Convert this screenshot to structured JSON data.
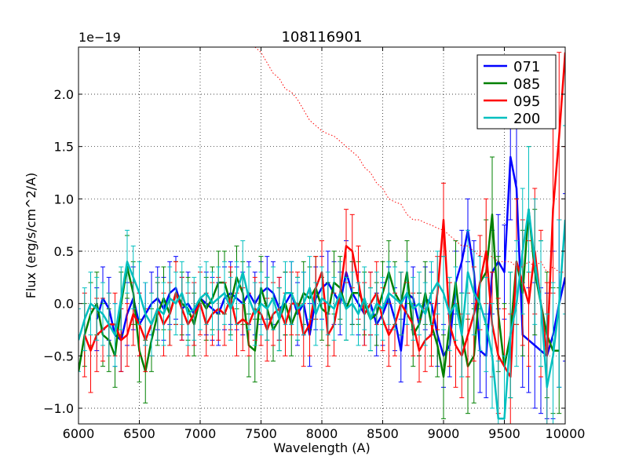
{
  "chart_data": {
    "type": "line",
    "title": "108116901",
    "xlabel": "Wavelength (A)",
    "ylabel": "Flux (erg/s/cm^2/A)",
    "offset_text": "1e−19",
    "xlim": [
      6000,
      10000
    ],
    "ylim": [
      -1.15,
      2.45
    ],
    "xticks": [
      6000,
      6500,
      7000,
      7500,
      8000,
      8500,
      9000,
      9500,
      10000
    ],
    "xtick_labels": [
      "6000",
      "6500",
      "7000",
      "7500",
      "8000",
      "8500",
      "9000",
      "9500",
      "10000"
    ],
    "yticks": [
      -1.0,
      -0.5,
      0.0,
      0.5,
      1.0,
      1.5,
      2.0
    ],
    "ytick_labels": [
      "−1.0",
      "−0.5",
      "0.0",
      "0.5",
      "1.0",
      "1.5",
      "2.0"
    ],
    "grid": true,
    "legend_position": "top-right",
    "series": [
      {
        "name": "071",
        "color": "#0000ff",
        "x": [
          6150,
          6200,
          6250,
          6300,
          6350,
          6400,
          6450,
          6500,
          6550,
          6600,
          6650,
          6700,
          6750,
          6800,
          6850,
          6900,
          6950,
          7000,
          7050,
          7100,
          7150,
          7200,
          7250,
          7300,
          7350,
          7400,
          7450,
          7500,
          7550,
          7600,
          7650,
          7700,
          7750,
          7800,
          7850,
          7900,
          7950,
          8000,
          8050,
          8100,
          8150,
          8200,
          8250,
          8300,
          8350,
          8400,
          8450,
          8500,
          8550,
          8600,
          8650,
          8700,
          8750,
          8800,
          8850,
          8900,
          8950,
          9000,
          9050,
          9100,
          9150,
          9200,
          9250,
          9300,
          9350,
          9400,
          9450,
          9500,
          9550,
          9600,
          9650,
          9700,
          9750,
          9800,
          9850,
          9900,
          9950,
          10000
        ],
        "values": [
          -0.15,
          0.05,
          -0.05,
          -0.3,
          -0.35,
          -0.1,
          0.05,
          -0.2,
          -0.1,
          0.0,
          0.05,
          -0.05,
          0.1,
          0.15,
          -0.05,
          0.0,
          -0.1,
          0.05,
          0.0,
          -0.05,
          -0.1,
          0.05,
          0.1,
          0.05,
          0.0,
          0.1,
          0.0,
          0.1,
          0.15,
          0.1,
          -0.05,
          0.0,
          0.1,
          -0.1,
          0.0,
          -0.3,
          0.05,
          0.15,
          0.2,
          0.1,
          0.0,
          0.3,
          0.1,
          0.0,
          -0.1,
          0.0,
          -0.2,
          -0.1,
          0.05,
          -0.15,
          -0.45,
          0.1,
          0.05,
          -0.2,
          0.05,
          0.0,
          -0.3,
          -0.5,
          -0.4,
          0.2,
          0.4,
          0.7,
          0.3,
          -0.45,
          -0.5,
          0.3,
          0.4,
          0.3,
          1.4,
          1.1,
          -0.3,
          -0.35,
          -0.4,
          -0.45,
          -0.5,
          -0.3,
          0.0,
          0.25
        ],
        "errors": [
          0.3,
          0.3,
          0.3,
          0.3,
          0.3,
          0.3,
          0.3,
          0.3,
          0.3,
          0.3,
          0.3,
          0.3,
          0.3,
          0.3,
          0.3,
          0.3,
          0.3,
          0.3,
          0.3,
          0.3,
          0.3,
          0.3,
          0.3,
          0.3,
          0.3,
          0.3,
          0.3,
          0.3,
          0.3,
          0.3,
          0.3,
          0.3,
          0.3,
          0.3,
          0.3,
          0.3,
          0.3,
          0.3,
          0.3,
          0.3,
          0.3,
          0.3,
          0.3,
          0.3,
          0.3,
          0.3,
          0.3,
          0.3,
          0.3,
          0.3,
          0.3,
          0.3,
          0.3,
          0.3,
          0.3,
          0.3,
          0.3,
          0.3,
          0.3,
          0.3,
          0.3,
          0.3,
          0.3,
          0.4,
          0.4,
          0.4,
          0.45,
          0.45,
          0.6,
          0.6,
          0.5,
          0.5,
          0.6,
          0.6,
          0.6,
          0.8,
          0.8,
          0.8
        ]
      },
      {
        "name": "085",
        "color": "#008000",
        "x": [
          6000,
          6050,
          6100,
          6150,
          6200,
          6250,
          6300,
          6350,
          6400,
          6450,
          6500,
          6550,
          6600,
          6650,
          6700,
          6750,
          6800,
          6850,
          6900,
          6950,
          7000,
          7050,
          7100,
          7150,
          7200,
          7250,
          7300,
          7350,
          7400,
          7450,
          7500,
          7550,
          7600,
          7650,
          7700,
          7750,
          7800,
          7850,
          7900,
          7950,
          8000,
          8050,
          8100,
          8150,
          8200,
          8250,
          8300,
          8350,
          8400,
          8450,
          8500,
          8550,
          8600,
          8650,
          8700,
          8750,
          8800,
          8850,
          8900,
          8950,
          9000,
          9050,
          9100,
          9150,
          9200,
          9250,
          9300,
          9350,
          9400,
          9450,
          9500,
          9550,
          9600,
          9650,
          9700,
          9750,
          9800,
          9850,
          9900,
          9950
        ],
        "values": [
          -0.65,
          -0.3,
          -0.1,
          0.0,
          -0.3,
          -0.35,
          -0.5,
          0.0,
          0.35,
          0.1,
          -0.45,
          -0.65,
          -0.35,
          -0.1,
          0.05,
          -0.1,
          0.1,
          0.0,
          -0.05,
          -0.2,
          0.05,
          -0.05,
          0.05,
          0.2,
          0.2,
          0.0,
          0.25,
          0.1,
          -0.4,
          -0.45,
          0.15,
          -0.05,
          -0.25,
          -0.15,
          0.0,
          -0.2,
          -0.05,
          0.1,
          0.05,
          0.15,
          -0.05,
          -0.1,
          0.2,
          0.15,
          -0.05,
          0.1,
          0.1,
          0.0,
          -0.15,
          -0.1,
          0.1,
          0.3,
          0.1,
          0.0,
          0.3,
          -0.3,
          -0.2,
          0.1,
          -0.2,
          -0.4,
          -0.7,
          -0.2,
          0.2,
          -0.3,
          -0.6,
          -0.5,
          0.2,
          0.3,
          0.85,
          -0.1,
          -0.6,
          -0.3,
          0.4,
          0.1,
          0.9,
          0.3,
          0.0,
          -0.3,
          -0.45,
          -0.45
        ],
        "errors": [
          0.35,
          0.3,
          0.3,
          0.3,
          0.3,
          0.3,
          0.3,
          0.3,
          0.3,
          0.3,
          0.3,
          0.3,
          0.3,
          0.3,
          0.3,
          0.3,
          0.3,
          0.3,
          0.3,
          0.3,
          0.3,
          0.3,
          0.3,
          0.3,
          0.3,
          0.3,
          0.3,
          0.3,
          0.3,
          0.3,
          0.3,
          0.3,
          0.3,
          0.3,
          0.3,
          0.3,
          0.3,
          0.3,
          0.3,
          0.3,
          0.3,
          0.3,
          0.3,
          0.3,
          0.3,
          0.3,
          0.3,
          0.3,
          0.3,
          0.3,
          0.3,
          0.3,
          0.3,
          0.3,
          0.3,
          0.3,
          0.3,
          0.3,
          0.3,
          0.3,
          0.4,
          0.4,
          0.4,
          0.4,
          0.45,
          0.45,
          0.45,
          0.5,
          0.55,
          0.55,
          0.6,
          0.6,
          0.6,
          0.6,
          0.6,
          0.6,
          0.6,
          0.6,
          0.6,
          0.6
        ]
      },
      {
        "name": "095",
        "color": "#ff0000",
        "x": [
          6050,
          6100,
          6150,
          6200,
          6250,
          6300,
          6350,
          6400,
          6450,
          6500,
          6550,
          6600,
          6650,
          6700,
          6750,
          6800,
          6850,
          6900,
          6950,
          7000,
          7050,
          7100,
          7150,
          7200,
          7250,
          7300,
          7350,
          7400,
          7450,
          7500,
          7550,
          7600,
          7650,
          7700,
          7750,
          7800,
          7850,
          7900,
          7950,
          8000,
          8050,
          8100,
          8150,
          8200,
          8250,
          8300,
          8350,
          8400,
          8450,
          8500,
          8550,
          8600,
          8650,
          8700,
          8750,
          8800,
          8850,
          8900,
          8950,
          9000,
          9050,
          9100,
          9150,
          9200,
          9250,
          9300,
          9350,
          9400,
          9450,
          9500,
          9550,
          9600,
          9650,
          9700,
          9750,
          9800,
          9850,
          9900,
          9950,
          10000
        ],
        "values": [
          -0.3,
          -0.45,
          -0.3,
          -0.25,
          -0.2,
          -0.2,
          -0.35,
          -0.3,
          -0.1,
          -0.2,
          -0.35,
          -0.2,
          -0.05,
          -0.2,
          -0.1,
          0.1,
          -0.05,
          -0.2,
          -0.1,
          0.0,
          -0.2,
          -0.1,
          -0.05,
          -0.1,
          0.05,
          -0.2,
          -0.15,
          -0.2,
          -0.05,
          -0.1,
          -0.25,
          -0.1,
          -0.05,
          -0.2,
          0.0,
          0.0,
          -0.3,
          -0.2,
          0.15,
          0.3,
          -0.3,
          -0.2,
          0.1,
          0.55,
          0.5,
          0.2,
          -0.1,
          0.0,
          0.1,
          -0.15,
          -0.3,
          -0.2,
          0.0,
          -0.1,
          -0.2,
          -0.45,
          -0.35,
          -0.3,
          0.1,
          0.8,
          -0.2,
          -0.4,
          -0.5,
          -0.3,
          -0.1,
          0.2,
          0.5,
          -0.2,
          -0.5,
          -0.6,
          -0.7,
          0.4,
          0.2,
          0.0,
          0.5,
          0.0,
          -0.5,
          0.9,
          1.6,
          2.4
        ],
        "errors": [
          0.4,
          0.4,
          0.35,
          0.3,
          0.3,
          0.3,
          0.3,
          0.3,
          0.3,
          0.3,
          0.3,
          0.3,
          0.3,
          0.3,
          0.3,
          0.3,
          0.3,
          0.3,
          0.3,
          0.3,
          0.3,
          0.3,
          0.3,
          0.3,
          0.3,
          0.3,
          0.3,
          0.3,
          0.3,
          0.3,
          0.3,
          0.3,
          0.3,
          0.3,
          0.3,
          0.3,
          0.3,
          0.3,
          0.3,
          0.3,
          0.3,
          0.3,
          0.3,
          0.35,
          0.35,
          0.35,
          0.3,
          0.3,
          0.3,
          0.3,
          0.3,
          0.3,
          0.3,
          0.3,
          0.3,
          0.3,
          0.3,
          0.3,
          0.35,
          0.35,
          0.4,
          0.4,
          0.4,
          0.4,
          0.45,
          0.45,
          0.5,
          0.5,
          0.55,
          0.55,
          0.6,
          0.6,
          0.6,
          0.6,
          0.6,
          0.7,
          0.7,
          0.8,
          0.8,
          0.9
        ]
      },
      {
        "name": "200",
        "color": "#00bfbf",
        "x": [
          6000,
          6050,
          6100,
          6150,
          6200,
          6250,
          6300,
          6350,
          6400,
          6450,
          6500,
          6550,
          6600,
          6650,
          6700,
          6750,
          6800,
          6850,
          6900,
          6950,
          7000,
          7050,
          7100,
          7150,
          7200,
          7250,
          7300,
          7350,
          7400,
          7450,
          7500,
          7550,
          7600,
          7650,
          7700,
          7750,
          7800,
          7850,
          7900,
          7950,
          8000,
          8050,
          8100,
          8150,
          8200,
          8250,
          8300,
          8350,
          8400,
          8450,
          8500,
          8550,
          8600,
          8650,
          8700,
          8750,
          8800,
          8850,
          8900,
          8950,
          9000,
          9050,
          9100,
          9150,
          9200,
          9250,
          9300,
          9350,
          9400,
          9450,
          9500,
          9550,
          9600,
          9650,
          9700,
          9750,
          9800,
          9850,
          9900,
          9950,
          10000
        ],
        "values": [
          -0.35,
          -0.15,
          0.0,
          -0.05,
          -0.1,
          -0.2,
          -0.3,
          0.05,
          0.4,
          0.25,
          0.1,
          -0.1,
          -0.2,
          -0.05,
          -0.1,
          0.05,
          0.0,
          0.1,
          -0.1,
          -0.05,
          0.05,
          0.1,
          0.0,
          0.05,
          0.1,
          -0.05,
          0.1,
          0.3,
          0.05,
          -0.1,
          0.0,
          -0.05,
          0.05,
          -0.15,
          0.1,
          0.1,
          -0.05,
          0.0,
          0.15,
          -0.1,
          0.05,
          0.0,
          -0.05,
          0.1,
          -0.05,
          0.0,
          -0.1,
          0.05,
          -0.15,
          0.0,
          -0.05,
          0.1,
          0.05,
          0.0,
          0.1,
          -0.05,
          0.0,
          -0.1,
          0.1,
          0.2,
          0.1,
          -0.1,
          0.0,
          -0.3,
          0.3,
          0.1,
          0.0,
          -0.2,
          -0.5,
          -1.1,
          -1.1,
          -0.3,
          0.0,
          0.5,
          0.9,
          0.4,
          0.0,
          -0.8,
          -0.5,
          0.0,
          0.8
        ],
        "errors": [
          0.3,
          0.3,
          0.3,
          0.3,
          0.3,
          0.3,
          0.3,
          0.3,
          0.3,
          0.3,
          0.3,
          0.3,
          0.3,
          0.3,
          0.3,
          0.3,
          0.3,
          0.3,
          0.3,
          0.3,
          0.3,
          0.3,
          0.3,
          0.3,
          0.3,
          0.3,
          0.3,
          0.3,
          0.3,
          0.3,
          0.3,
          0.3,
          0.3,
          0.3,
          0.3,
          0.3,
          0.3,
          0.3,
          0.3,
          0.3,
          0.3,
          0.3,
          0.3,
          0.3,
          0.3,
          0.3,
          0.3,
          0.3,
          0.3,
          0.3,
          0.3,
          0.3,
          0.3,
          0.3,
          0.3,
          0.3,
          0.3,
          0.3,
          0.3,
          0.3,
          0.35,
          0.35,
          0.35,
          0.4,
          0.4,
          0.4,
          0.45,
          0.45,
          0.5,
          0.55,
          0.6,
          0.6,
          0.6,
          0.6,
          0.6,
          0.6,
          0.6,
          0.7,
          0.7,
          0.8,
          0.9
        ]
      },
      {
        "name": "",
        "color": "#ff0000",
        "style": "dotted",
        "x": [
          7450,
          7500,
          7550,
          7600,
          7650,
          7700,
          7750,
          7800,
          7850,
          7900,
          7950,
          8000,
          8050,
          8100,
          8150,
          8200,
          8250,
          8300,
          8350,
          8400,
          8450,
          8500,
          8550,
          8600,
          8650,
          8700,
          8750,
          8800,
          8850,
          8900,
          8950,
          9000,
          9050,
          9100,
          9150,
          9200,
          9250,
          9300,
          9350,
          9400,
          9450,
          9500,
          9550,
          9600,
          9650,
          9700,
          9750,
          9800,
          9850,
          9900,
          9950,
          10000
        ],
        "values": [
          2.45,
          2.4,
          2.3,
          2.2,
          2.15,
          2.05,
          2.02,
          1.95,
          1.85,
          1.75,
          1.7,
          1.65,
          1.62,
          1.6,
          1.55,
          1.5,
          1.45,
          1.4,
          1.3,
          1.25,
          1.15,
          1.1,
          1.0,
          0.97,
          0.95,
          0.85,
          0.8,
          0.8,
          0.77,
          0.75,
          0.72,
          0.7,
          0.65,
          0.6,
          0.55,
          0.55,
          0.5,
          0.45,
          0.45,
          0.45,
          0.4,
          0.4,
          0.4,
          0.35,
          0.35,
          0.4,
          0.35,
          0.4,
          0.3,
          0.35,
          0.3,
          0.3
        ],
        "errors": []
      }
    ]
  }
}
